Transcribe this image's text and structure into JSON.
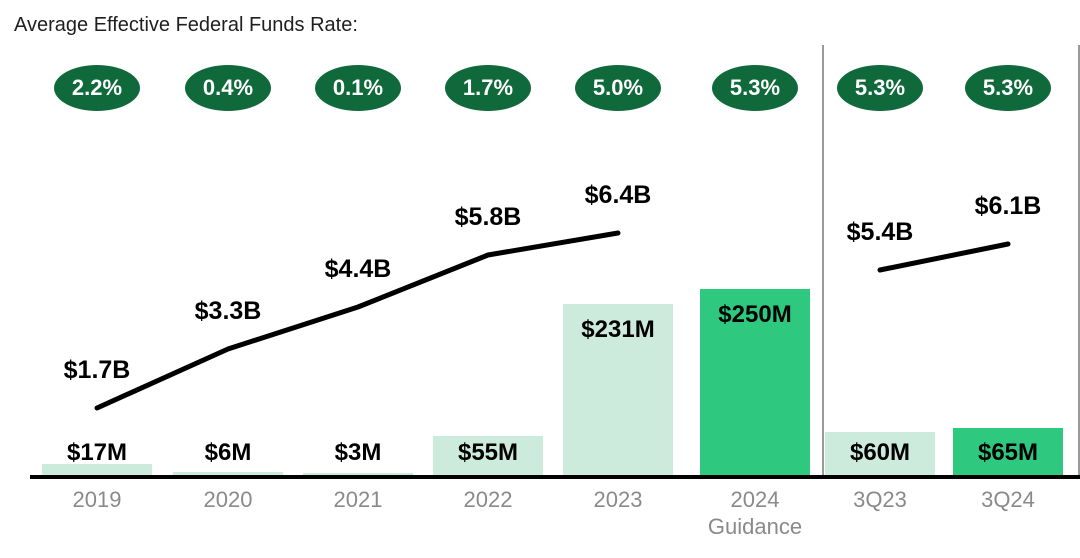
{
  "chart_data": {
    "type": "combo-bar-line",
    "title": "Average Effective Federal Funds Rate:",
    "categories": [
      "2019",
      "2020",
      "2021",
      "2022",
      "2023",
      "2024 Guidance",
      "3Q23",
      "3Q24"
    ],
    "rate_badges": [
      "2.2%",
      "0.4%",
      "0.1%",
      "1.7%",
      "5.0%",
      "5.3%",
      "5.3%",
      "5.3%"
    ],
    "bars": {
      "labels": [
        "$17M",
        "$6M",
        "$3M",
        "$55M",
        "$231M",
        "$250M",
        "$60M",
        "$65M"
      ],
      "values_millions": [
        17,
        6,
        3,
        55,
        231,
        250,
        60,
        65
      ],
      "highlight": [
        false,
        false,
        false,
        false,
        false,
        true,
        false,
        true
      ]
    },
    "line": {
      "labels": [
        "$1.7B",
        "$3.3B",
        "$4.4B",
        "$5.8B",
        "$6.4B",
        null,
        "$5.4B",
        "$6.1B"
      ],
      "values_billions": [
        1.7,
        3.3,
        4.4,
        5.8,
        6.4,
        null,
        5.4,
        6.1
      ]
    },
    "layout_hints": {
      "divider_after_category": "2024 Guidance",
      "legend": "none",
      "grid": "off"
    },
    "colors": {
      "badge_green": "#10693B",
      "bar_light": "#CDEBDC",
      "bar_highlight": "#2EC97E",
      "line_black": "#000000",
      "axis_black": "#000000",
      "axis_label_gray": "#8A8A8A",
      "divider_gray": "#9A9A9A"
    }
  }
}
